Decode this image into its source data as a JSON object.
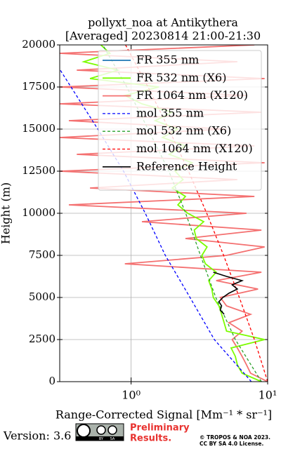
{
  "chart_data": {
    "type": "line",
    "title": [
      "pollyxt_noa at Antikythera",
      "[Averaged] 20230814 21:00-21:30"
    ],
    "xlabel": "Range-Corrected Signal [Mm⁻¹ * sr⁻¹]",
    "ylabel": "Height (m)",
    "xscale": "log",
    "xlim": [
      0.3,
      10
    ],
    "ylim": [
      0,
      20000
    ],
    "xticks": [
      {
        "value": 1,
        "label": "10⁰"
      },
      {
        "value": 10,
        "label": "10¹"
      }
    ],
    "yticks": [
      0,
      2500,
      5000,
      7500,
      10000,
      12500,
      15000,
      17500,
      20000
    ],
    "grid": true,
    "legend": "upper right",
    "series": [
      {
        "name": "FR 355 nm",
        "color": "#1f77b4",
        "dashed": false,
        "x": [],
        "y": []
      },
      {
        "name": "FR 532 nm (X6)",
        "color": "#7cfc00",
        "dashed": false,
        "x": [
          9.0,
          6.5,
          6.0,
          5.8,
          5.4,
          9.5,
          5.0,
          4.8,
          4.6,
          4.4,
          4.0,
          3.9,
          3.7,
          4.2,
          3.5,
          3.3,
          3.6,
          3.0,
          2.9,
          3.4,
          2.6,
          2.2,
          2.5,
          2.0,
          2.4,
          2.1,
          2.8,
          1.9,
          2.5,
          1.7,
          2.2,
          1.5,
          2.0,
          1.2,
          0.9,
          1.6,
          0.5,
          0.8,
          0.45,
          0.7,
          0.6
        ],
        "y": [
          0,
          500,
          1000,
          1500,
          2000,
          2500,
          3000,
          3500,
          4000,
          4500,
          5000,
          5500,
          6000,
          6500,
          7000,
          7500,
          8000,
          8500,
          9000,
          9500,
          10000,
          10500,
          11000,
          11500,
          12000,
          12500,
          13000,
          13500,
          14000,
          14500,
          15000,
          15500,
          16000,
          16500,
          17000,
          17500,
          18000,
          18500,
          19000,
          19500,
          20000
        ]
      },
      {
        "name": "FR 1064 nm (X120)",
        "color": "#f47070",
        "dashed": false,
        "x": [
          10,
          7.5,
          7.0,
          6.5,
          6.0,
          5.5,
          6.5,
          5.2,
          7.5,
          5.0,
          4.5,
          8.5,
          4.2,
          9.0,
          0.9,
          5.0,
          9.5,
          2.5,
          9.0,
          1.2,
          7.0,
          0.35,
          8.0,
          0.5,
          6.0,
          0.3,
          9.5,
          0.4,
          8.0,
          0.3,
          5.0,
          0.35,
          9.0,
          0.3,
          7.0,
          0.3,
          9.5,
          0.4,
          6.0,
          0.3,
          8.0
        ],
        "y": [
          0,
          500,
          1000,
          1500,
          2000,
          2500,
          3000,
          3500,
          4000,
          4500,
          5000,
          5500,
          6000,
          6500,
          7000,
          7500,
          8000,
          8500,
          9000,
          9500,
          10000,
          10500,
          11000,
          11500,
          12000,
          12500,
          13000,
          13500,
          14000,
          14500,
          15000,
          15500,
          16000,
          16500,
          17000,
          17500,
          18000,
          18500,
          19000,
          19500,
          20000
        ]
      },
      {
        "name": "mol 355 nm",
        "color": "#0000ff",
        "dashed": true,
        "x": [
          7.6,
          4.07,
          2.7,
          1.78,
          1.27,
          0.88,
          0.57,
          0.303
        ],
        "y": [
          0,
          2500,
          5000,
          7500,
          10000,
          12500,
          15000,
          18500
        ]
      },
      {
        "name": "mol 532 nm (X6)",
        "color": "#2ca02c",
        "dashed": true,
        "x": [
          9.0,
          5.8,
          4.17,
          3.22,
          2.51,
          1.89,
          1.33,
          0.93,
          0.62
        ],
        "y": [
          0,
          2500,
          5000,
          7500,
          10000,
          12500,
          15000,
          17500,
          20000
        ]
      },
      {
        "name": "mol 1064 nm (X120)",
        "color": "#ff0000",
        "dashed": true,
        "x": [
          10,
          8.0,
          6.2,
          4.76,
          3.58,
          2.63,
          1.89,
          1.33,
          0.91
        ],
        "y": [
          0,
          2500,
          5000,
          7500,
          10000,
          12500,
          15000,
          17500,
          20000
        ]
      },
      {
        "name": "Reference Height",
        "color": "#000000",
        "dashed": false,
        "x": [
          4.8,
          4.5,
          4.6,
          4.4,
          4.7,
          5.2,
          6.0,
          5.5,
          6.5,
          5.0,
          4.0
        ],
        "y": [
          4000,
          4250,
          4500,
          4750,
          5000,
          5250,
          5500,
          5750,
          6000,
          6250,
          6500
        ]
      }
    ]
  },
  "footer": {
    "version": "Version: 3.6",
    "badge": [
      "BY",
      "SA"
    ],
    "notice": [
      "Preliminary",
      "Results."
    ],
    "copyright": [
      "© TROPOS & NOA 2023.",
      "CC BY SA 4.0 License."
    ]
  }
}
